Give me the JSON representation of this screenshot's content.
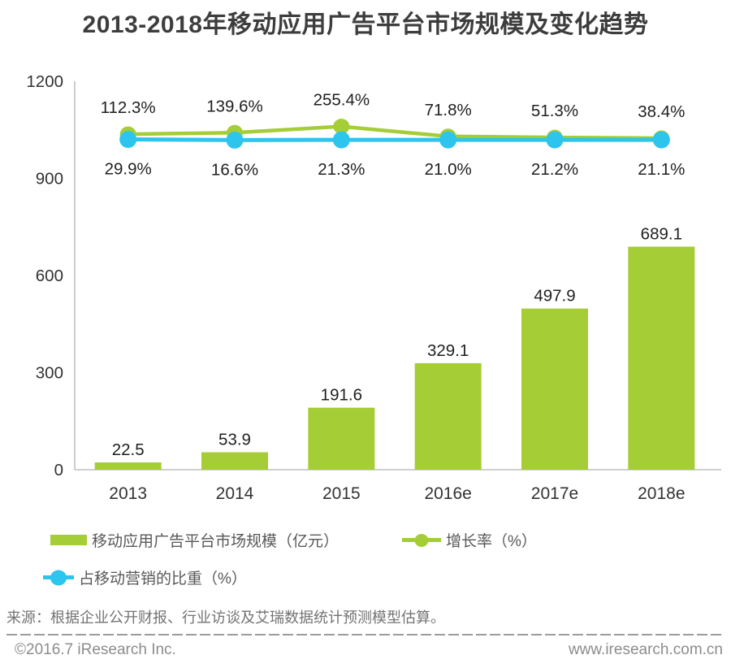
{
  "title": "2013-2018年移动应用广告平台市场规模及变化趋势",
  "chart_data": {
    "type": "bar",
    "categories": [
      "2013",
      "2014",
      "2015",
      "2016e",
      "2017e",
      "2018e"
    ],
    "series": [
      {
        "name": "移动应用广告平台市场规模（亿元）",
        "type": "bar",
        "values": [
          22.5,
          53.9,
          191.6,
          329.1,
          497.9,
          689.1
        ],
        "labels": [
          "22.5",
          "53.9",
          "191.6",
          "329.1",
          "497.9",
          "689.1"
        ]
      },
      {
        "name": "增长率（%）",
        "type": "line",
        "values": [
          112.3,
          139.6,
          255.4,
          71.8,
          51.3,
          38.4
        ],
        "labels": [
          "112.3%",
          "139.6%",
          "255.4%",
          "71.8%",
          "51.3%",
          "38.4%"
        ]
      },
      {
        "name": "占移动营销的比重（%）",
        "type": "line",
        "values": [
          29.9,
          16.6,
          21.3,
          21.0,
          21.2,
          21.1
        ],
        "labels": [
          "29.9%",
          "16.6%",
          "21.3%",
          "21.0%",
          "21.2%",
          "21.1%"
        ]
      }
    ],
    "ylabel": "",
    "y_axis": {
      "min": 0,
      "max": 1200,
      "ticks": [
        0,
        300,
        600,
        900,
        1200
      ]
    },
    "grid": false,
    "legend_position": "bottom-left"
  },
  "legend": {
    "items": [
      {
        "label": "移动应用广告平台市场规模（亿元）"
      },
      {
        "label": "增长率（%）"
      },
      {
        "label": "占移动营销的比重（%）"
      }
    ]
  },
  "source": "来源：根据企业公开财报、行业访谈及艾瑞数据统计预测模型估算。",
  "footer": {
    "left": "©2016.7 iResearch Inc.",
    "right": "www.iresearch.com.cn"
  },
  "colors": {
    "green": "#a5cd36",
    "blue": "#2dc5ed",
    "title_text": "#3d3d3d",
    "value_text": "#1f1f1f",
    "axis_line": "#c8c8c8",
    "tick_text": "#333333",
    "legend_text": "#595959",
    "source_text": "#737373",
    "footer_text": "#8c8c8c"
  }
}
